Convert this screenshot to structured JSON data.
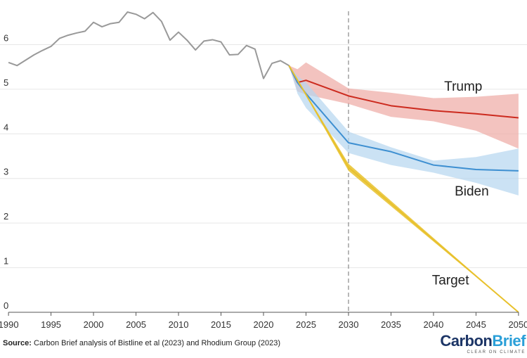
{
  "chart_data": {
    "type": "line",
    "title": "",
    "xlabel": "",
    "ylabel": "",
    "xlim": [
      1989,
      2051
    ],
    "ylim": [
      0,
      7
    ],
    "x_ticks": [
      1990,
      1995,
      2000,
      2005,
      2010,
      2015,
      2020,
      2025,
      2030,
      2035,
      2040,
      2045,
      2050
    ],
    "y_ticks": [
      0,
      1,
      2,
      3,
      4,
      5,
      6
    ],
    "grid": "horizontal",
    "legend": "none",
    "reference_line": {
      "x": 2030,
      "style": "dashed"
    },
    "historical": {
      "color": "#999999",
      "x": [
        1990,
        1991,
        1992,
        1993,
        1994,
        1995,
        1996,
        1997,
        1998,
        1999,
        2000,
        2001,
        2002,
        2003,
        2004,
        2005,
        2006,
        2007,
        2008,
        2009,
        2010,
        2011,
        2012,
        2013,
        2014,
        2015,
        2016,
        2017,
        2018,
        2019,
        2020,
        2021,
        2022,
        2023
      ],
      "y": [
        5.6,
        5.53,
        5.65,
        5.77,
        5.87,
        5.96,
        6.14,
        6.21,
        6.26,
        6.3,
        6.5,
        6.4,
        6.47,
        6.5,
        6.73,
        6.68,
        6.58,
        6.72,
        6.52,
        6.1,
        6.28,
        6.1,
        5.88,
        6.08,
        6.11,
        6.06,
        5.77,
        5.78,
        5.98,
        5.9,
        5.24,
        5.58,
        5.64,
        5.53
      ]
    },
    "series": [
      {
        "name": "Trump",
        "color": "#cc2a1e",
        "band_color": "#eeaaa4",
        "x": [
          2023,
          2024,
          2025,
          2030,
          2035,
          2040,
          2045,
          2050
        ],
        "y": [
          5.53,
          5.15,
          5.2,
          4.85,
          4.63,
          4.52,
          4.45,
          4.36
        ],
        "upper": [
          5.53,
          5.45,
          5.6,
          5.02,
          4.92,
          4.8,
          4.83,
          4.9
        ],
        "lower": [
          5.53,
          4.95,
          4.88,
          4.67,
          4.38,
          4.28,
          4.07,
          3.67
        ]
      },
      {
        "name": "Biden",
        "color": "#3d8fd1",
        "band_color": "#b5d6ef",
        "x": [
          2023,
          2024,
          2025,
          2030,
          2035,
          2040,
          2045,
          2050
        ],
        "y": [
          5.53,
          5.15,
          4.9,
          3.8,
          3.6,
          3.3,
          3.2,
          3.17
        ],
        "upper": [
          5.53,
          5.3,
          5.15,
          4.05,
          3.7,
          3.4,
          3.48,
          3.67
        ],
        "lower": [
          5.53,
          4.9,
          4.58,
          3.57,
          3.3,
          3.13,
          2.9,
          2.62
        ]
      },
      {
        "name": "Target",
        "color": "#e8c12c",
        "band_color": "#e8c12c",
        "x": [
          2023,
          2030,
          2050
        ],
        "y": [
          5.53,
          3.25,
          0.0
        ],
        "upper": [
          5.53,
          3.33,
          0.0
        ],
        "lower": [
          5.53,
          3.17,
          0.0
        ]
      }
    ],
    "label_positions": {
      "Trump": [
        2043.5,
        4.97
      ],
      "Biden": [
        2044.5,
        2.62
      ],
      "Target": [
        2042,
        0.62
      ]
    },
    "colors": {
      "grid": "#e6e6e6",
      "axis": "#555555",
      "dash": "#888888"
    }
  },
  "source": {
    "prefix": "Source:",
    "text": " Carbon Brief analysis of Bistline et al (2023) and Rhodium Group (2023)"
  },
  "logo": {
    "part1": "Carbon",
    "part2": "Brief",
    "tagline": "CLEAR ON CLIMATE",
    "color1": "#1c3566",
    "color2": "#2a9fd8"
  }
}
